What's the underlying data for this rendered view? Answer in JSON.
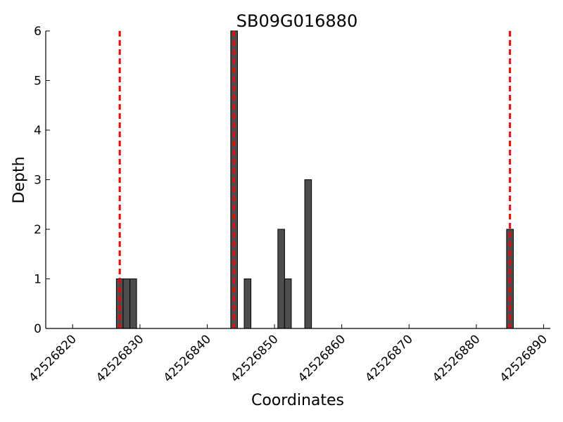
{
  "chart_data": {
    "type": "bar",
    "title": "SB09G016880",
    "xlabel": "Coordinates",
    "ylabel": "Depth",
    "xlim": [
      42526816,
      42526891
    ],
    "ylim": [
      0,
      6
    ],
    "xticks": [
      42526820,
      42526830,
      42526840,
      42526850,
      42526860,
      42526870,
      42526880,
      42526890
    ],
    "yticks": [
      0,
      1,
      2,
      3,
      4,
      5,
      6
    ],
    "bar_color": "#4d4d4d",
    "bar_edge_color": "#000000",
    "marker_line_color": "#ff0000",
    "bars": [
      {
        "x": 42526827,
        "value": 1
      },
      {
        "x": 42526828,
        "value": 1
      },
      {
        "x": 42526829,
        "value": 1
      },
      {
        "x": 42526844,
        "value": 6
      },
      {
        "x": 42526846,
        "value": 1
      },
      {
        "x": 42526851,
        "value": 2
      },
      {
        "x": 42526852,
        "value": 1
      },
      {
        "x": 42526855,
        "value": 3
      },
      {
        "x": 42526885,
        "value": 2
      }
    ],
    "marker_lines": [
      42526827,
      42526844,
      42526885
    ],
    "grid": false,
    "legend": "none"
  }
}
